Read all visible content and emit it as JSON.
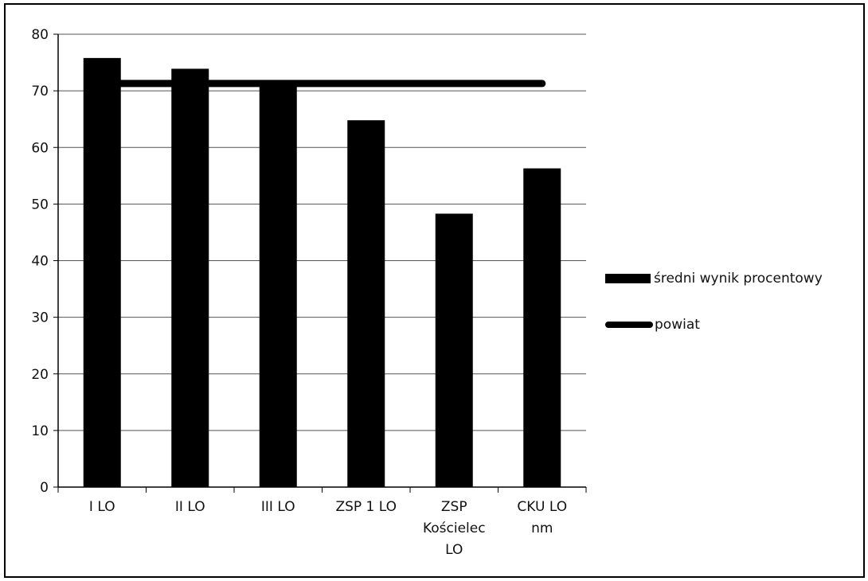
{
  "chart_data": {
    "type": "bar",
    "title": "",
    "xlabel": "",
    "ylabel": "",
    "categories": [
      [
        "I LO"
      ],
      [
        "II LO"
      ],
      [
        "III LO"
      ],
      [
        "ZSP 1 LO"
      ],
      [
        "ZSP",
        "Kościelec",
        "LO"
      ],
      [
        "CKU LO",
        "nm"
      ]
    ],
    "series": [
      {
        "name": "średni wynik procentowy",
        "type": "bar",
        "values": [
          75.8,
          73.9,
          71.2,
          64.8,
          48.3,
          56.3
        ],
        "color": "#000000"
      },
      {
        "name": "powiat",
        "type": "line",
        "values": [
          71.3,
          71.3,
          71.3,
          71.3,
          71.3,
          71.3
        ],
        "color": "#000000"
      }
    ],
    "ylim": [
      0,
      80
    ],
    "yticks": [
      0,
      10,
      20,
      30,
      40,
      50,
      60,
      70,
      80
    ],
    "grid": true,
    "legend_position": "right"
  }
}
